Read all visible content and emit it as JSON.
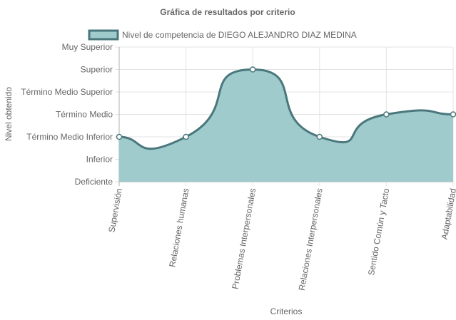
{
  "chart_data": {
    "type": "area",
    "title": "Gráfica de resultados por criterio",
    "xlabel": "Criterios",
    "ylabel": "Nivel obtenido",
    "y_levels": [
      "Deficiente",
      "Inferior",
      "Término Medio Inferior",
      "Término Medio",
      "Término Medio Superior",
      "Superior",
      "Muy Superior"
    ],
    "ylim": [
      0,
      6
    ],
    "categories": [
      "Supervisión",
      "Relaciones humanas",
      "Problemas Interpersonales",
      "Relaciones Interpersonales",
      "Sentido Común y Tacto",
      "Adaptabilidad"
    ],
    "series": [
      {
        "name": "Nivel de competencia de DIEGO ALEJANDRO DIAZ MEDINA",
        "values": [
          2,
          2,
          5,
          2,
          3,
          3
        ],
        "level_labels": [
          "Término Medio Inferior",
          "Término Medio Inferior",
          "Superior",
          "Término Medio Inferior",
          "Término Medio",
          "Término Medio"
        ]
      }
    ],
    "grid": true,
    "legend_position": "top",
    "colors": {
      "fill": "#9fcbcd",
      "line": "#4a777c",
      "grid": "#e3e3e3",
      "axis": "#b0b0b0",
      "point_fill": "#ffffff"
    }
  }
}
